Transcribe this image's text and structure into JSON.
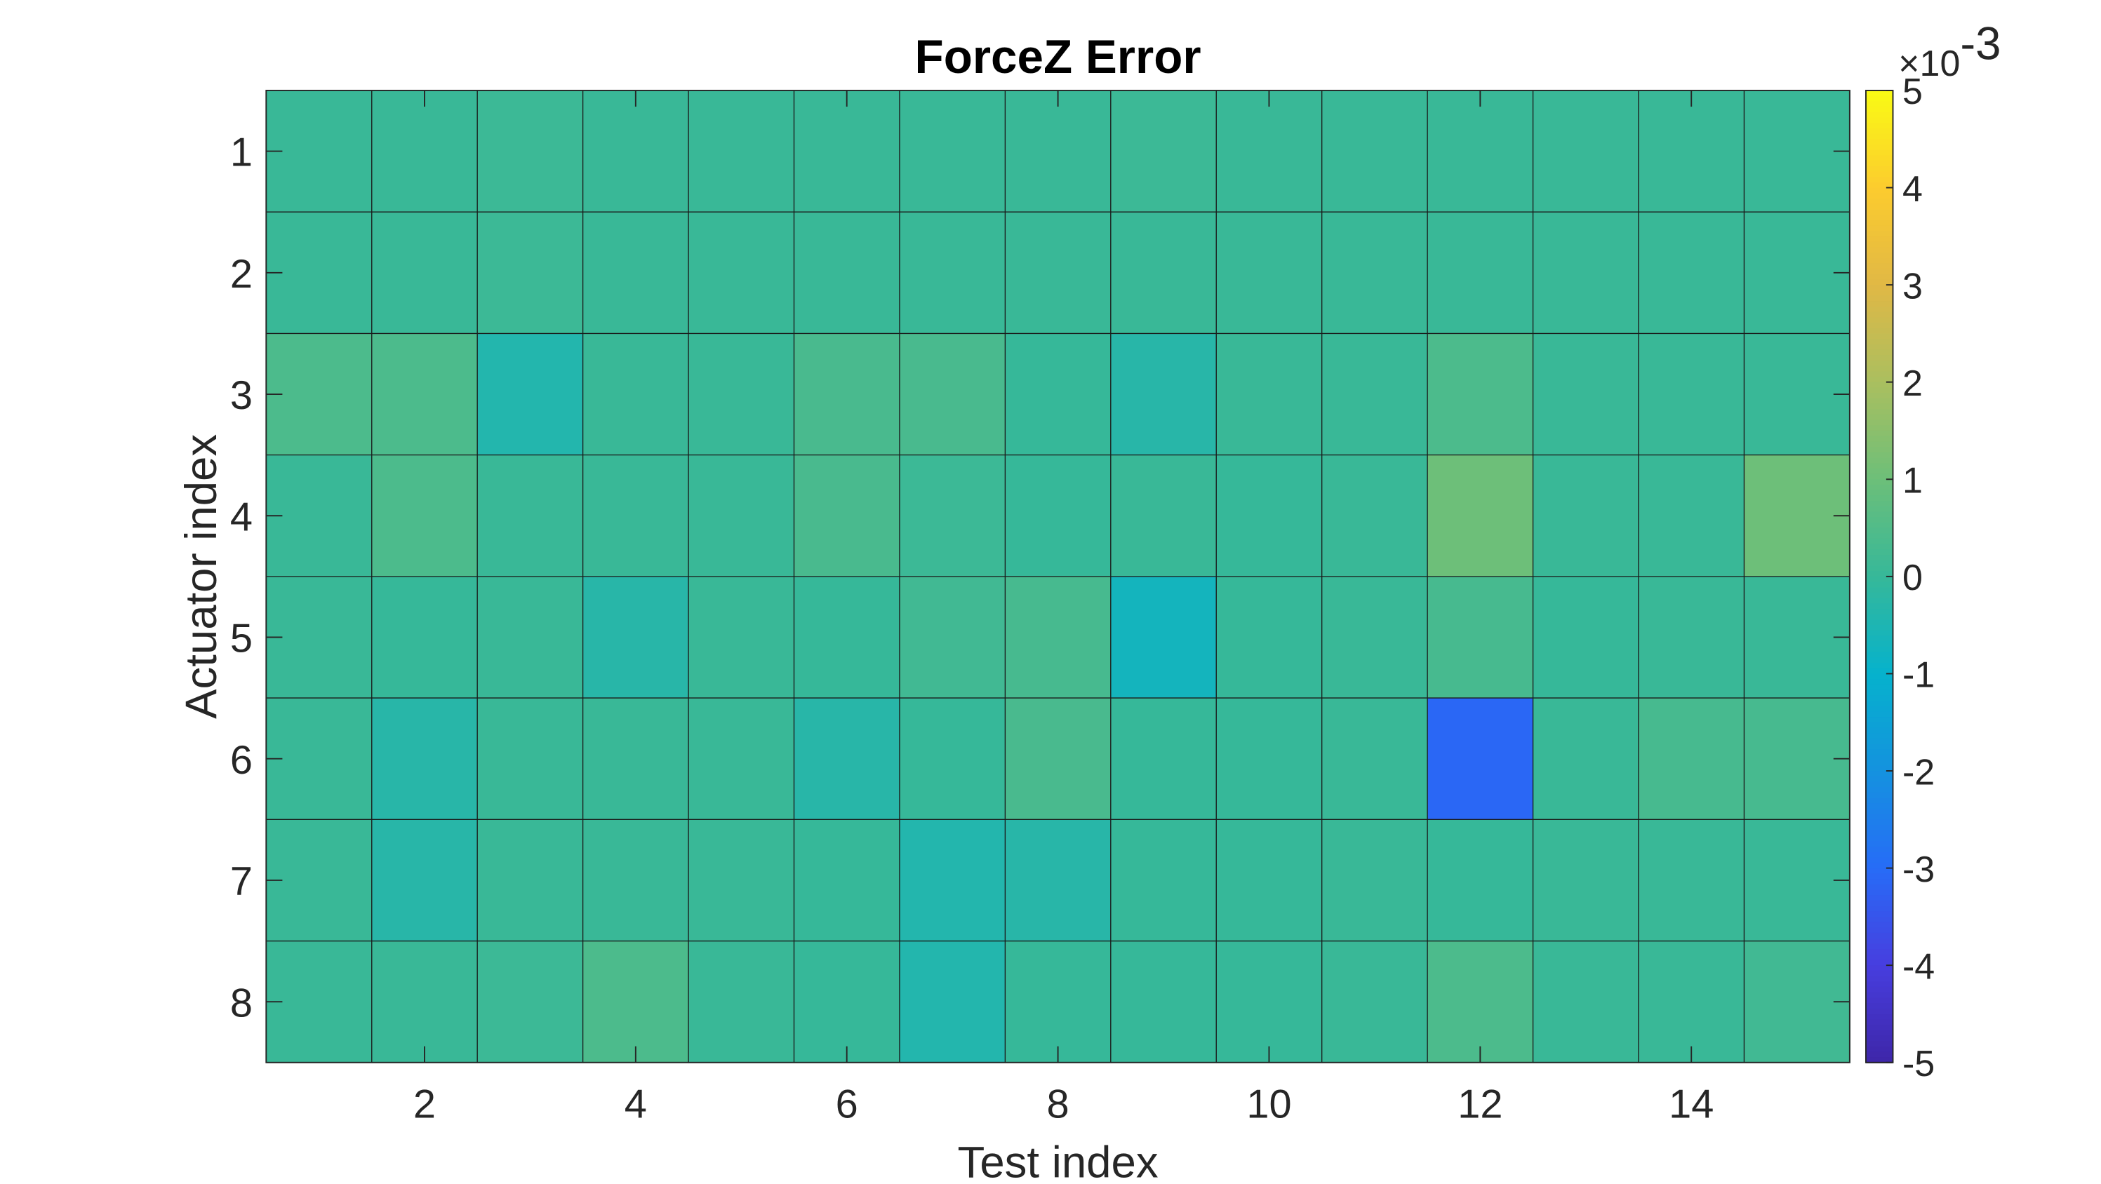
{
  "chart_data": {
    "type": "heatmap",
    "title": "ForceZ Error",
    "xlabel": "Test index",
    "ylabel": "Actuator index",
    "x": [
      1,
      2,
      3,
      4,
      5,
      6,
      7,
      8,
      9,
      10,
      11,
      12,
      13,
      14,
      15
    ],
    "y": [
      1,
      2,
      3,
      4,
      5,
      6,
      7,
      8
    ],
    "x_ticks": [
      2,
      4,
      6,
      8,
      10,
      12,
      14
    ],
    "y_ticks": [
      1,
      2,
      3,
      4,
      5,
      6,
      7,
      8
    ],
    "colormap": "parula",
    "clim": [
      -5,
      5
    ],
    "colorbar_ticks": [
      5,
      4,
      3,
      2,
      1,
      0,
      -1,
      -2,
      -3,
      -4,
      -5
    ],
    "colorbar_multiplier": "×10",
    "colorbar_exponent": "-3",
    "grid": true,
    "values_scaled_1e-3": [
      [
        0.05,
        0.05,
        0.1,
        0.05,
        0.05,
        0.05,
        0.05,
        0.05,
        0.1,
        0.05,
        0.05,
        0.05,
        0.05,
        0.05,
        0.05
      ],
      [
        0.05,
        0.05,
        0.1,
        0.05,
        0.05,
        0.05,
        0.05,
        0.05,
        0.05,
        0.05,
        0.05,
        0.05,
        0.05,
        0.05,
        0.05
      ],
      [
        0.4,
        0.4,
        -0.4,
        0.05,
        0.05,
        0.35,
        0.35,
        0.0,
        -0.3,
        0.05,
        0.05,
        0.4,
        0.05,
        0.05,
        0.05
      ],
      [
        0.05,
        0.4,
        0.05,
        0.05,
        0.05,
        0.35,
        0.1,
        0.0,
        0.05,
        0.0,
        0.05,
        1.0,
        0.05,
        0.05,
        1.0
      ],
      [
        0.05,
        0.0,
        0.05,
        -0.3,
        0.05,
        0.0,
        0.2,
        0.3,
        -0.7,
        0.0,
        0.05,
        0.3,
        0.0,
        0.05,
        0.05
      ],
      [
        0.05,
        -0.3,
        0.05,
        0.05,
        0.05,
        -0.3,
        0.0,
        0.35,
        0.0,
        0.0,
        0.05,
        -3.1,
        0.05,
        0.3,
        0.3
      ],
      [
        0.05,
        -0.3,
        0.05,
        0.05,
        0.05,
        0.0,
        -0.4,
        -0.3,
        0.0,
        0.0,
        0.05,
        0.0,
        0.05,
        0.05,
        0.05
      ],
      [
        0.05,
        0.05,
        0.1,
        0.4,
        0.05,
        0.0,
        -0.4,
        0.0,
        0.0,
        0.0,
        0.05,
        0.4,
        0.05,
        0.05,
        0.2
      ]
    ]
  }
}
